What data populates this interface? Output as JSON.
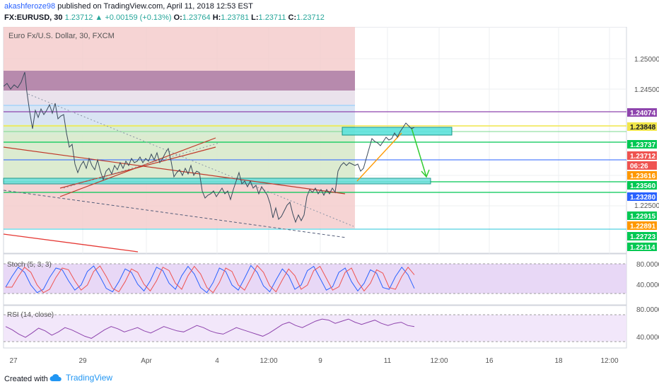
{
  "header": {
    "author": "akashferoze98",
    "published_text": "published on TradingView.com, April 11, 2018 12:53 EST",
    "symbol_line": "FX:EURUSD, 30",
    "last": "1.23712",
    "change": "+0.00159 (+0.13%)",
    "open_label": "O:",
    "open": "1.23764",
    "high_label": "H:",
    "high": "1.23781",
    "low_label": "L:",
    "low": "1.23711",
    "close_label": "C:",
    "close": "1.23712"
  },
  "chart": {
    "title": "Euro Fx/U.S. Dollar, 30, FXCM",
    "price_ticks": [
      "1.25000",
      "1.24500",
      "1.22500"
    ],
    "price_labels": [
      {
        "text": "1.24074",
        "color": "#8e44ad"
      },
      {
        "text": "1.23848",
        "color": "#f1e64a",
        "dark": true
      },
      {
        "text": "1.23737",
        "color": "#00c853"
      },
      {
        "text": "1.23712",
        "color": "#ef5350"
      },
      {
        "text": "06:26",
        "color": "#ef5350"
      },
      {
        "text": "1.23616",
        "color": "#ff9800"
      },
      {
        "text": "1.23560",
        "color": "#00c853"
      },
      {
        "text": "1.23280",
        "color": "#2962ff"
      },
      {
        "text": "1.22915",
        "color": "#00c853"
      },
      {
        "text": "1.22891",
        "color": "#ff9800"
      },
      {
        "text": "1.22723",
        "color": "#00c853"
      },
      {
        "text": "1.22114",
        "color": "#00c853"
      }
    ],
    "time_ticks": [
      "27",
      "29",
      "Apr",
      "4",
      "12:00",
      "9",
      "11",
      "12:00",
      "16",
      "18",
      "12:00"
    ]
  },
  "stoch": {
    "label": "Stoch (5, 3, 3)",
    "ticks": [
      "80.0000",
      "40.0000"
    ],
    "values": [
      35,
      60,
      82,
      70,
      40,
      22,
      30,
      58,
      80,
      76,
      50,
      28,
      40,
      72,
      85,
      60,
      32,
      24,
      48,
      78,
      70,
      42,
      26,
      50,
      82,
      74,
      44,
      30,
      62,
      84,
      66,
      34,
      22,
      46,
      80,
      72,
      40,
      28,
      56,
      86,
      70,
      38,
      24,
      52,
      78,
      62,
      30,
      40,
      74,
      84,
      56,
      28,
      36,
      70,
      80,
      48,
      26,
      44,
      76,
      68,
      34,
      30,
      60,
      82,
      64,
      32
    ]
  },
  "rsi": {
    "label": "RSI (14, close)",
    "ticks": [
      "80.0000",
      "40.0000"
    ],
    "values": [
      58,
      52,
      44,
      38,
      46,
      55,
      50,
      42,
      48,
      56,
      52,
      46,
      40,
      36,
      44,
      52,
      58,
      54,
      48,
      52,
      56,
      50,
      46,
      52,
      58,
      54,
      50,
      48,
      54,
      60,
      56,
      50,
      46,
      44,
      50,
      56,
      52,
      48,
      44,
      40,
      46,
      54,
      62,
      66,
      60,
      56,
      62,
      68,
      72,
      70,
      64,
      68,
      72,
      66,
      62,
      66,
      70,
      64,
      60,
      64,
      66,
      60,
      58
    ]
  },
  "footer": {
    "created_with": "Created with",
    "brand": "TradingView"
  }
}
